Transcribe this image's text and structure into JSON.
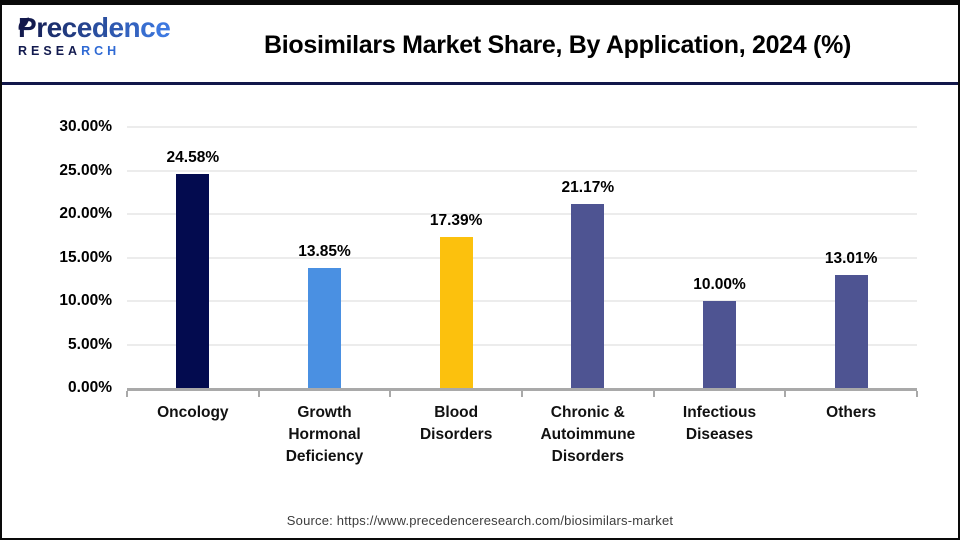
{
  "logo": {
    "brand": "Precedence",
    "sub_dark": "RESEA",
    "sub_blue": "RCH",
    "dark_color": "#131b4f",
    "blue_color": "#3d78e0"
  },
  "header": {
    "title": "Biosimilars Market Share, By Application, 2024 (%)"
  },
  "chart_data": {
    "type": "bar",
    "title": "Biosimilars Market Share, By Application, 2024 (%)",
    "categories": [
      "Oncology",
      "Growth Hormonal Deficiency",
      "Blood Disorders",
      "Chronic & Autoimmune Disorders",
      "Infectious Diseases",
      "Others"
    ],
    "category_lines": [
      [
        "Oncology"
      ],
      [
        "Growth",
        "Hormonal",
        "Deficiency"
      ],
      [
        "Blood",
        "Disorders"
      ],
      [
        "Chronic &",
        "Autoimmune",
        "Disorders"
      ],
      [
        "Infectious",
        "Diseases"
      ],
      [
        "Others"
      ]
    ],
    "values": [
      24.58,
      13.85,
      17.39,
      21.17,
      10.0,
      13.01
    ],
    "value_labels": [
      "24.58%",
      "13.85%",
      "17.39%",
      "21.17%",
      "10.00%",
      "13.01%"
    ],
    "bar_colors": [
      "#030b4f",
      "#4a90e2",
      "#fcc10d",
      "#4e5492",
      "#4e5492",
      "#4e5492"
    ],
    "xlabel": "",
    "ylabel": "",
    "ylim": [
      0,
      30
    ],
    "ytick_step": 5,
    "ytick_labels": [
      "0.00%",
      "5.00%",
      "10.00%",
      "15.00%",
      "20.00%",
      "25.00%",
      "30.00%"
    ],
    "grid": true,
    "legend": "none"
  },
  "footer": {
    "source": "Source: https://www.precedenceresearch.com/biosimilars-market"
  }
}
